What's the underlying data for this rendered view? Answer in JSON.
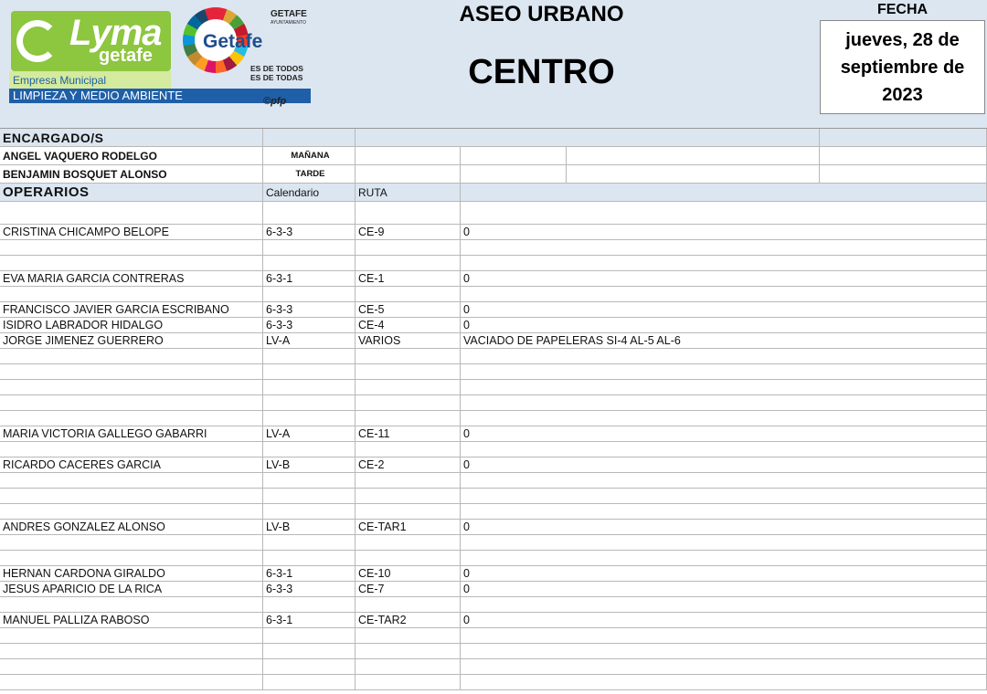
{
  "header": {
    "logo": {
      "brand": "Lyma",
      "brand_sub": "getafe",
      "company": "Empresa Municipal",
      "department": "LIMPIEZA Y MEDIO AMBIENTE",
      "city_logo": "Getafe",
      "city": "GETAFE",
      "city_sub": "AYUNTAMIENTO",
      "slogan_1": "ES DE TODOS",
      "slogan_2": "ES DE TODAS",
      "credit": "©pfp"
    },
    "title": "ASEO URBANO",
    "zone": "CENTRO",
    "date_label": "FECHA",
    "date": "jueves, 28 de septiembre de 2023"
  },
  "table": {
    "supervisors_label": "ENCARGADO/S",
    "supervisors": [
      [
        "ANGEL VAQUERO RODELGO",
        "MAÑANA"
      ],
      [
        "BENJAMIN BOSQUET ALONSO",
        "TARDE"
      ]
    ],
    "operators_label": "OPERARIOS",
    "columns": [
      "Calendario",
      "RUTA"
    ],
    "operators": [
      [
        "CRISTINA CHICAMPO BELOPE",
        "6-3-3",
        "CE-9",
        "0"
      ],
      [
        "EVA MARIA GARCIA CONTRERAS",
        "6-3-1",
        "CE-1",
        "0"
      ],
      [
        "FRANCISCO JAVIER GARCIA ESCRIBANO",
        "6-3-3",
        "CE-5",
        "0"
      ],
      [
        "ISIDRO LABRADOR HIDALGO",
        "6-3-3",
        "CE-4",
        "0"
      ],
      [
        "JORGE JIMENEZ GUERRERO",
        "LV-A",
        "VARIOS",
        "VACIADO DE PAPELERAS SI-4 AL-5 AL-6"
      ],
      [
        "MARIA VICTORIA GALLEGO GABARRI",
        "LV-A",
        "CE-11",
        "0"
      ],
      [
        "RICARDO CACERES GARCIA",
        "LV-B",
        "CE-2",
        "0"
      ],
      [
        "ANDRES GONZALEZ ALONSO",
        "LV-B",
        "CE-TAR1",
        "0"
      ],
      [
        "HERNAN CARDONA GIRALDO",
        "6-3-1",
        "CE-10",
        "0"
      ],
      [
        "JESUS APARICIO DE LA RICA",
        "6-3-3",
        "CE-7",
        "0"
      ],
      [
        "MANUEL PALLIZA RABOSO",
        "6-3-1",
        "CE-TAR2",
        "0"
      ]
    ]
  }
}
